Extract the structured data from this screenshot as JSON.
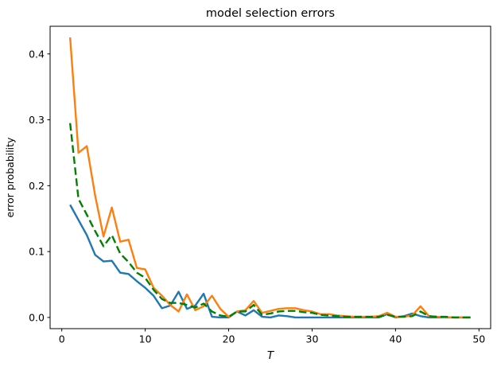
{
  "chart_data": {
    "type": "line",
    "title": "model selection errors",
    "xlabel": "T",
    "ylabel": "error probability",
    "grid": false,
    "legend": null,
    "xlim": [
      -1.4,
      51.4
    ],
    "ylim": [
      -0.017,
      0.442
    ],
    "x_ticks": [
      0,
      10,
      20,
      30,
      40,
      50
    ],
    "x_tick_labels": [
      "0",
      "10",
      "20",
      "30",
      "40",
      "50"
    ],
    "y_ticks": [
      0.0,
      0.1,
      0.2,
      0.3,
      0.4
    ],
    "y_tick_labels": [
      "0.0",
      "0.1",
      "0.2",
      "0.3",
      "0.4"
    ],
    "x": [
      1,
      2,
      3,
      4,
      5,
      6,
      7,
      8,
      9,
      10,
      11,
      12,
      13,
      14,
      15,
      16,
      17,
      18,
      19,
      20,
      21,
      22,
      23,
      24,
      25,
      26,
      27,
      28,
      29,
      30,
      31,
      32,
      33,
      34,
      35,
      36,
      37,
      38,
      39,
      40,
      41,
      42,
      43,
      44,
      45,
      46,
      47,
      48,
      49
    ],
    "series": [
      {
        "name": "blue-solid",
        "color": "#1f77b4",
        "style": "solid",
        "values": [
          0.171,
          0.148,
          0.125,
          0.095,
          0.085,
          0.086,
          0.068,
          0.066,
          0.055,
          0.045,
          0.033,
          0.014,
          0.018,
          0.039,
          0.013,
          0.018,
          0.036,
          0.001,
          0.0,
          0.0,
          0.009,
          0.003,
          0.011,
          0.001,
          0.0,
          0.003,
          0.002,
          0.0,
          0.0,
          0.0,
          0.0,
          0.0,
          0.0,
          0.0,
          0.0,
          0.0,
          0.0,
          0.0,
          0.005,
          0.0,
          0.002,
          0.006,
          0.002,
          0.0,
          0.0,
          0.0,
          0.0,
          0.0,
          0.0
        ]
      },
      {
        "name": "orange-solid",
        "color": "#ff7f0e",
        "style": "solid",
        "values": [
          0.425,
          0.25,
          0.26,
          0.185,
          0.123,
          0.167,
          0.115,
          0.118,
          0.075,
          0.073,
          0.045,
          0.033,
          0.019,
          0.009,
          0.035,
          0.011,
          0.017,
          0.033,
          0.013,
          0.001,
          0.009,
          0.011,
          0.025,
          0.007,
          0.01,
          0.013,
          0.014,
          0.014,
          0.011,
          0.009,
          0.005,
          0.005,
          0.003,
          0.002,
          0.001,
          0.001,
          0.001,
          0.002,
          0.007,
          0.001,
          0.001,
          0.003,
          0.017,
          0.002,
          0.001,
          0.0,
          0.0,
          0.0,
          0.0
        ]
      },
      {
        "name": "green-dashed",
        "color": "#008000",
        "style": "dashed",
        "values": [
          0.295,
          0.18,
          0.156,
          0.131,
          0.108,
          0.125,
          0.097,
          0.084,
          0.068,
          0.06,
          0.042,
          0.028,
          0.022,
          0.022,
          0.019,
          0.015,
          0.021,
          0.009,
          0.003,
          0.001,
          0.009,
          0.009,
          0.019,
          0.004,
          0.006,
          0.009,
          0.01,
          0.01,
          0.008,
          0.007,
          0.004,
          0.003,
          0.002,
          0.001,
          0.001,
          0.001,
          0.001,
          0.001,
          0.004,
          0.001,
          0.001,
          0.002,
          0.009,
          0.002,
          0.001,
          0.001,
          0.0,
          0.0,
          0.0
        ]
      }
    ]
  }
}
